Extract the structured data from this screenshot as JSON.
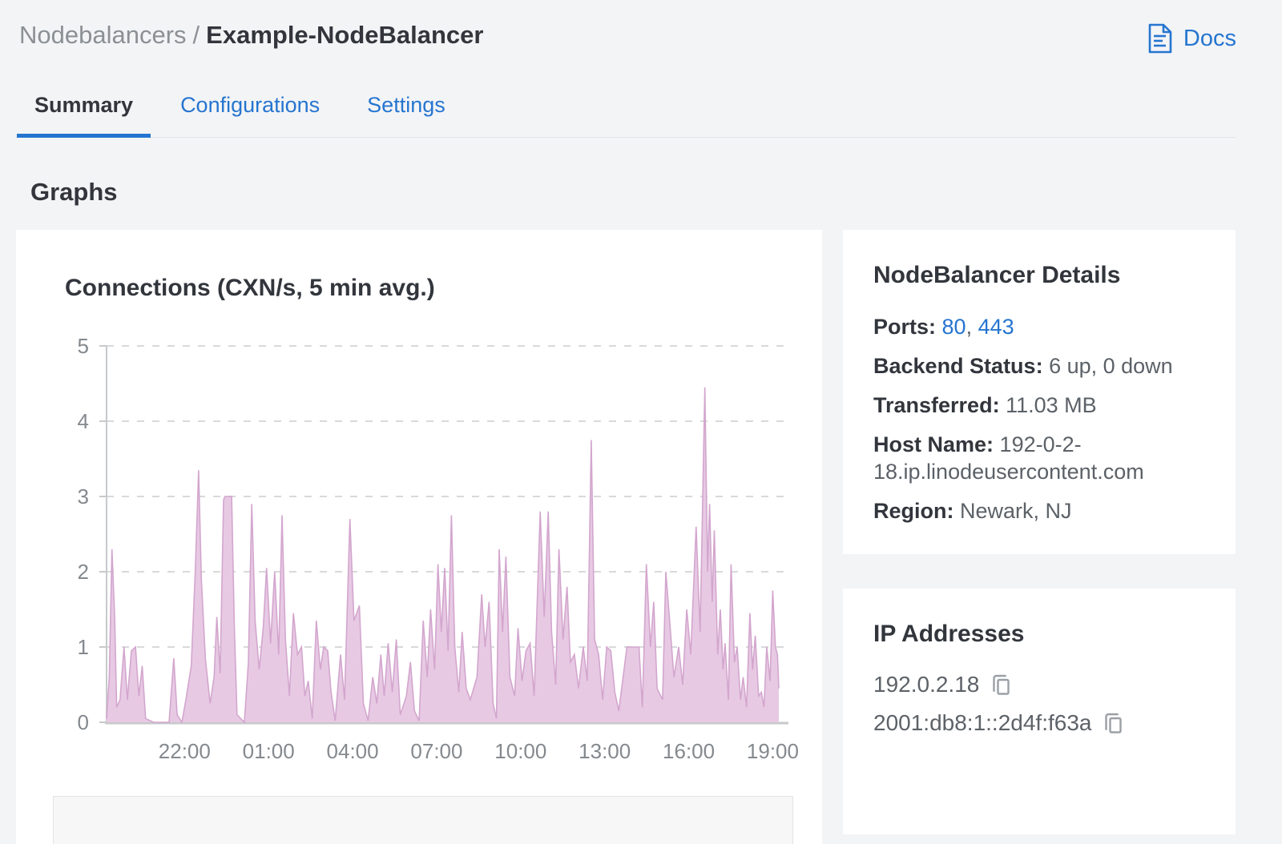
{
  "header": {
    "breadcrumb": {
      "section": "Nodebalancers",
      "separator": "/",
      "current": "Example-NodeBalancer"
    },
    "docs_link": {
      "label": "Docs",
      "icon": "docs-icon"
    }
  },
  "tabs": [
    {
      "label": "Summary",
      "active": true
    },
    {
      "label": "Configurations",
      "active": false
    },
    {
      "label": "Settings",
      "active": false
    }
  ],
  "section_title": "Graphs",
  "chart_data": {
    "type": "area",
    "title": "Connections (CXN/s, 5 min avg.)",
    "series_name": "Connections",
    "unit": "CXN/s",
    "ylim": [
      0,
      5
    ],
    "yticks": [
      0,
      1,
      2,
      3,
      4,
      5
    ],
    "grid": "dashed-horizontal",
    "legend_position": "none",
    "fill_color": "#e7c9e3",
    "line_color": "#d3a6ce",
    "grid_color": "#d8d9db",
    "axis_color": "#c7c9cb",
    "tick_label_color": "#84898e",
    "xticks": [
      {
        "label": "22:00",
        "f": 0.116
      },
      {
        "label": "01:00",
        "f": 0.241
      },
      {
        "label": "04:00",
        "f": 0.366
      },
      {
        "label": "07:00",
        "f": 0.491
      },
      {
        "label": "10:00",
        "f": 0.616
      },
      {
        "label": "13:00",
        "f": 0.741
      },
      {
        "label": "16:00",
        "f": 0.866
      },
      {
        "label": "19:00",
        "f": 0.991
      }
    ],
    "points": [
      [
        0.0,
        0.05
      ],
      [
        0.004,
        0.6
      ],
      [
        0.008,
        2.3
      ],
      [
        0.012,
        1.4
      ],
      [
        0.015,
        0.2
      ],
      [
        0.02,
        0.3
      ],
      [
        0.026,
        1.0
      ],
      [
        0.031,
        0.3
      ],
      [
        0.037,
        0.95
      ],
      [
        0.043,
        1.0
      ],
      [
        0.048,
        0.35
      ],
      [
        0.053,
        0.75
      ],
      [
        0.058,
        0.05
      ],
      [
        0.07,
        0.0
      ],
      [
        0.093,
        0.0
      ],
      [
        0.1,
        0.85
      ],
      [
        0.105,
        0.1
      ],
      [
        0.112,
        0.0
      ],
      [
        0.118,
        0.3
      ],
      [
        0.126,
        0.75
      ],
      [
        0.132,
        2.0
      ],
      [
        0.137,
        3.35
      ],
      [
        0.141,
        1.9
      ],
      [
        0.147,
        0.85
      ],
      [
        0.154,
        0.25
      ],
      [
        0.16,
        0.6
      ],
      [
        0.164,
        1.4
      ],
      [
        0.169,
        0.65
      ],
      [
        0.174,
        2.95
      ],
      [
        0.176,
        3.0
      ],
      [
        0.186,
        3.0
      ],
      [
        0.19,
        1.3
      ],
      [
        0.194,
        0.1
      ],
      [
        0.205,
        0.0
      ],
      [
        0.211,
        0.8
      ],
      [
        0.216,
        2.9
      ],
      [
        0.221,
        1.35
      ],
      [
        0.227,
        0.7
      ],
      [
        0.233,
        1.25
      ],
      [
        0.238,
        2.05
      ],
      [
        0.244,
        1.05
      ],
      [
        0.25,
        2.0
      ],
      [
        0.256,
        0.9
      ],
      [
        0.261,
        2.75
      ],
      [
        0.266,
        1.1
      ],
      [
        0.272,
        0.35
      ],
      [
        0.278,
        1.45
      ],
      [
        0.284,
        0.9
      ],
      [
        0.29,
        1.0
      ],
      [
        0.295,
        0.35
      ],
      [
        0.3,
        0.55
      ],
      [
        0.306,
        0.05
      ],
      [
        0.312,
        1.35
      ],
      [
        0.318,
        0.7
      ],
      [
        0.323,
        1.0
      ],
      [
        0.329,
        0.95
      ],
      [
        0.334,
        0.4
      ],
      [
        0.34,
        0.02
      ],
      [
        0.348,
        0.9
      ],
      [
        0.354,
        0.3
      ],
      [
        0.362,
        2.7
      ],
      [
        0.368,
        1.35
      ],
      [
        0.376,
        1.55
      ],
      [
        0.382,
        0.25
      ],
      [
        0.389,
        0.02
      ],
      [
        0.396,
        0.6
      ],
      [
        0.402,
        0.25
      ],
      [
        0.408,
        0.9
      ],
      [
        0.413,
        0.35
      ],
      [
        0.419,
        1.05
      ],
      [
        0.425,
        0.4
      ],
      [
        0.431,
        1.1
      ],
      [
        0.437,
        0.1
      ],
      [
        0.446,
        0.35
      ],
      [
        0.452,
        0.8
      ],
      [
        0.458,
        0.15
      ],
      [
        0.465,
        0.02
      ],
      [
        0.471,
        1.35
      ],
      [
        0.477,
        0.6
      ],
      [
        0.482,
        1.5
      ],
      [
        0.488,
        0.7
      ],
      [
        0.493,
        2.1
      ],
      [
        0.498,
        1.2
      ],
      [
        0.503,
        2.05
      ],
      [
        0.508,
        0.95
      ],
      [
        0.513,
        2.75
      ],
      [
        0.518,
        1.0
      ],
      [
        0.524,
        0.4
      ],
      [
        0.529,
        1.2
      ],
      [
        0.535,
        0.45
      ],
      [
        0.541,
        0.3
      ],
      [
        0.551,
        0.6
      ],
      [
        0.558,
        1.7
      ],
      [
        0.563,
        1.0
      ],
      [
        0.569,
        1.6
      ],
      [
        0.575,
        0.25
      ],
      [
        0.58,
        0.05
      ],
      [
        0.584,
        2.3
      ],
      [
        0.589,
        1.2
      ],
      [
        0.594,
        2.2
      ],
      [
        0.6,
        0.6
      ],
      [
        0.607,
        0.35
      ],
      [
        0.612,
        1.25
      ],
      [
        0.618,
        0.55
      ],
      [
        0.624,
        0.95
      ],
      [
        0.63,
        1.05
      ],
      [
        0.636,
        0.35
      ],
      [
        0.645,
        2.8
      ],
      [
        0.651,
        1.4
      ],
      [
        0.657,
        2.8
      ],
      [
        0.662,
        1.2
      ],
      [
        0.668,
        0.5
      ],
      [
        0.673,
        2.3
      ],
      [
        0.679,
        1.1
      ],
      [
        0.685,
        1.8
      ],
      [
        0.69,
        0.8
      ],
      [
        0.696,
        0.9
      ],
      [
        0.702,
        0.45
      ],
      [
        0.709,
        1.0
      ],
      [
        0.715,
        0.55
      ],
      [
        0.721,
        3.75
      ],
      [
        0.726,
        1.1
      ],
      [
        0.732,
        0.9
      ],
      [
        0.738,
        0.3
      ],
      [
        0.744,
        1.0
      ],
      [
        0.75,
        0.95
      ],
      [
        0.756,
        0.4
      ],
      [
        0.762,
        0.15
      ],
      [
        0.774,
        1.0
      ],
      [
        0.792,
        1.0
      ],
      [
        0.797,
        0.2
      ],
      [
        0.803,
        2.1
      ],
      [
        0.809,
        1.0
      ],
      [
        0.814,
        1.6
      ],
      [
        0.819,
        0.45
      ],
      [
        0.827,
        0.3
      ],
      [
        0.832,
        2.0
      ],
      [
        0.838,
        1.3
      ],
      [
        0.844,
        0.6
      ],
      [
        0.851,
        1.0
      ],
      [
        0.857,
        0.5
      ],
      [
        0.863,
        1.5
      ],
      [
        0.869,
        0.9
      ],
      [
        0.877,
        2.6
      ],
      [
        0.883,
        1.2
      ],
      [
        0.89,
        4.45
      ],
      [
        0.894,
        2.0
      ],
      [
        0.897,
        2.9
      ],
      [
        0.901,
        1.6
      ],
      [
        0.904,
        2.55
      ],
      [
        0.909,
        0.9
      ],
      [
        0.913,
        1.5
      ],
      [
        0.917,
        0.7
      ],
      [
        0.92,
        1.05
      ],
      [
        0.925,
        0.3
      ],
      [
        0.929,
        2.1
      ],
      [
        0.934,
        0.8
      ],
      [
        0.938,
        1.0
      ],
      [
        0.943,
        0.3
      ],
      [
        0.947,
        0.6
      ],
      [
        0.952,
        0.2
      ],
      [
        0.957,
        1.45
      ],
      [
        0.961,
        0.7
      ],
      [
        0.965,
        1.15
      ],
      [
        0.97,
        0.35
      ],
      [
        0.974,
        0.4
      ],
      [
        0.978,
        0.2
      ],
      [
        0.982,
        1.0
      ],
      [
        0.987,
        0.55
      ],
      [
        0.991,
        1.75
      ],
      [
        0.995,
        1.0
      ],
      [
        0.998,
        0.9
      ],
      [
        1.0,
        0.45
      ]
    ]
  },
  "details_panel": {
    "title": "NodeBalancer Details",
    "rows": [
      {
        "label": "Ports:",
        "links": [
          "80",
          "443"
        ],
        "separator": ", "
      },
      {
        "label": "Backend Status:",
        "value": "6 up, 0 down"
      },
      {
        "label": "Transferred:",
        "value": "11.03 MB"
      },
      {
        "label": "Host Name:",
        "value": "192-0-2-18.ip.linodeusercontent.com"
      },
      {
        "label": "Region:",
        "value": "Newark, NJ"
      }
    ]
  },
  "ip_panel": {
    "title": "IP Addresses",
    "ips": [
      "192.0.2.18",
      "2001:db8:1::2d4f:f63a"
    ]
  },
  "colors": {
    "accent_blue": "#2575d0",
    "text_dark": "#32363c",
    "text_gray": "#5b6167",
    "muted_gray": "#8b9095",
    "page_background": "#f3f4f6"
  }
}
